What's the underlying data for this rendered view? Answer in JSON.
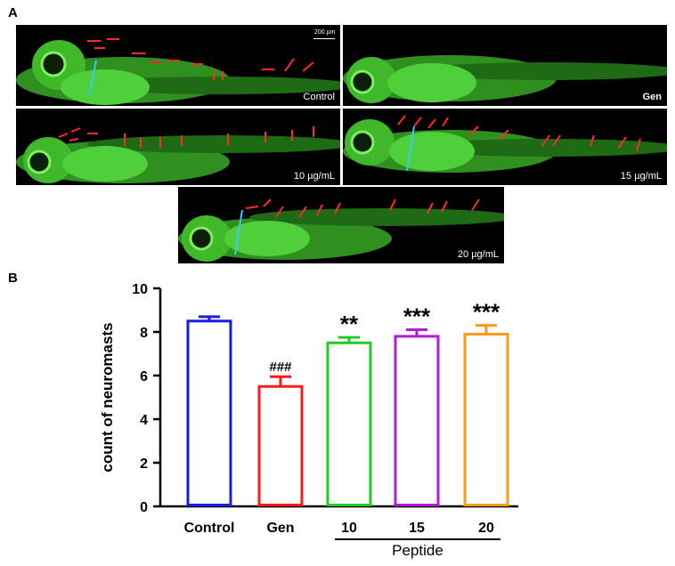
{
  "figure": {
    "panel_a_label": "A",
    "panel_b_label": "B",
    "scale_bar_label": "200 µm"
  },
  "images": [
    {
      "label": "Control",
      "bold": false,
      "arrow_color": "#ff2a2a"
    },
    {
      "label": "Gen",
      "bold": true
    },
    {
      "label": "10 µg/mL",
      "bold": false
    },
    {
      "label": "15 µg/mL",
      "bold": false
    },
    {
      "label": "20 µg/mL",
      "bold": false
    }
  ],
  "chart_data": {
    "type": "bar",
    "categories": [
      "Control",
      "Gen",
      "10",
      "15",
      "20"
    ],
    "values": [
      8.5,
      5.5,
      7.5,
      7.8,
      7.9
    ],
    "errors": [
      0.2,
      0.45,
      0.25,
      0.3,
      0.4
    ],
    "significance": [
      "",
      "###",
      "**",
      "***",
      "***"
    ],
    "colors": [
      "#1a1ae6",
      "#ff1a1a",
      "#22cc22",
      "#b21ad9",
      "#ff9a1a"
    ],
    "ylabel": "count of neuromasts",
    "xlabel": "",
    "group_label": "Peptide",
    "ylim": [
      0,
      10
    ],
    "yticks": [
      0,
      2,
      4,
      6,
      8,
      10
    ],
    "grid": false,
    "legend": "none"
  }
}
